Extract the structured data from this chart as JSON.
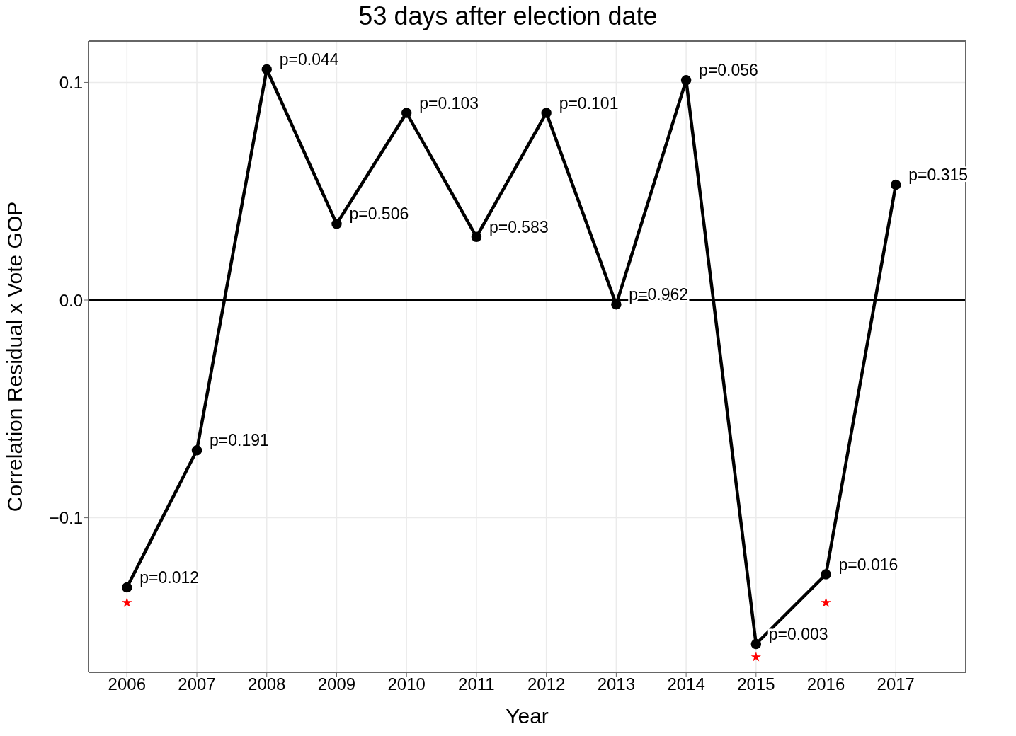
{
  "chart_data": {
    "type": "line",
    "title": "53 days after election date",
    "xlabel": "Year",
    "ylabel": "Correlation Residual x Vote GOP",
    "x": [
      2006,
      2007,
      2008,
      2009,
      2010,
      2011,
      2012,
      2013,
      2014,
      2015,
      2016,
      2017
    ],
    "series": [
      {
        "color": "#000000",
        "marker": "circle",
        "values": [
          -0.132,
          -0.069,
          0.106,
          0.035,
          0.086,
          0.029,
          0.086,
          -0.002,
          0.101,
          -0.158,
          -0.126,
          0.053
        ]
      },
      {
        "type": "scatter",
        "color": "#ff0000",
        "marker": "star",
        "x": [
          2006,
          2015,
          2016
        ],
        "values": [
          -0.139,
          -0.164,
          -0.139
        ]
      }
    ],
    "xlim": [
      2005.45,
      2018.0
    ],
    "xticks": [
      2006,
      2007,
      2008,
      2009,
      2010,
      2011,
      2012,
      2013,
      2014,
      2015,
      2016,
      2017
    ],
    "ylim": [
      -0.171,
      0.119
    ],
    "yticks": [
      {
        "value": -0.1,
        "label": "−0.1"
      },
      {
        "value": 0,
        "label": "0.0"
      },
      {
        "value": 0.1,
        "label": "0.1"
      }
    ],
    "grid": true,
    "legend": false,
    "ref_lines": [
      {
        "axis": "y",
        "value": 0,
        "color": "#000000"
      }
    ],
    "annotations": [
      {
        "text": "p=0.012",
        "x": 2006,
        "y": -0.132
      },
      {
        "text": "p=0.191",
        "x": 2007,
        "y": -0.069
      },
      {
        "text": "p=0.044",
        "x": 2008,
        "y": 0.106
      },
      {
        "text": "p=0.506",
        "x": 2009,
        "y": 0.035
      },
      {
        "text": "p=0.103",
        "x": 2010,
        "y": 0.086
      },
      {
        "text": "p=0.583",
        "x": 2011,
        "y": 0.029
      },
      {
        "text": "p=0.101",
        "x": 2012,
        "y": 0.086
      },
      {
        "text": "p=0.962",
        "x": 2013,
        "y": -0.002
      },
      {
        "text": "p=0.056",
        "x": 2014,
        "y": 0.101
      },
      {
        "text": "p=0.003",
        "x": 2015,
        "y": -0.158
      },
      {
        "text": "p=0.016",
        "x": 2016,
        "y": -0.126
      },
      {
        "text": "p=0.315",
        "x": 2017,
        "y": 0.053
      }
    ]
  }
}
